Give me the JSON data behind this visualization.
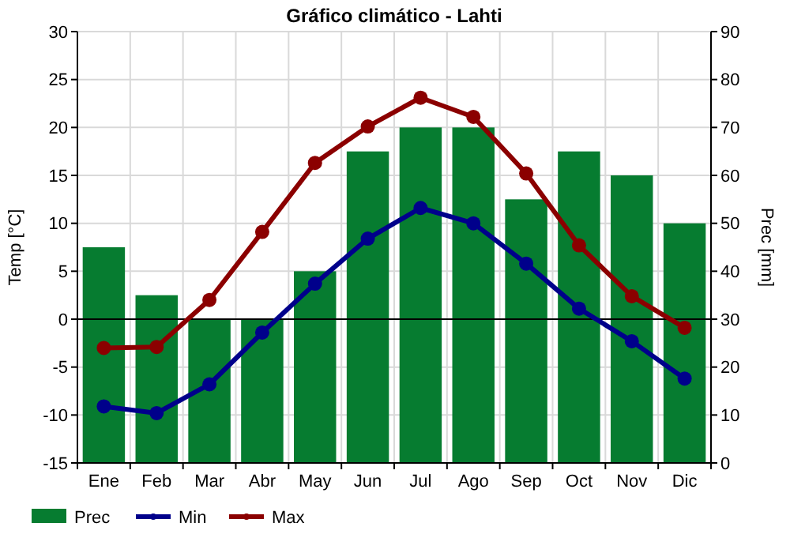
{
  "chart_data": {
    "type": "bar",
    "title": "Gráfico climático - Lahti",
    "categories": [
      "Ene",
      "Feb",
      "Mar",
      "Abr",
      "May",
      "Jun",
      "Jul",
      "Ago",
      "Sep",
      "Oct",
      "Nov",
      "Dic"
    ],
    "series": [
      {
        "name": "Prec",
        "axis": "y2",
        "color": "#067c30",
        "values": [
          45,
          35,
          30,
          30,
          40,
          65,
          70,
          70,
          55,
          65,
          60,
          50
        ]
      },
      {
        "name": "Min",
        "type": "line",
        "color": "#00008b",
        "values": [
          -9.1,
          -9.8,
          -6.8,
          -1.4,
          3.7,
          8.4,
          11.6,
          10,
          5.8,
          1.1,
          -2.3,
          -6.2
        ]
      },
      {
        "name": "Max",
        "type": "line",
        "color": "#8b0000",
        "values": [
          -3,
          -2.9,
          2,
          9.1,
          16.3,
          20.1,
          23.1,
          21.1,
          15.2,
          7.7,
          2.4,
          -0.9
        ]
      }
    ],
    "ylabel": "Temp [°C]",
    "y2label": "Prec [mm]",
    "ylim": [
      -15,
      30
    ],
    "yticks": [
      -15,
      -10,
      -5,
      0,
      5,
      10,
      15,
      20,
      25,
      30
    ],
    "y2lim": [
      0,
      90
    ],
    "y2ticks": [
      0,
      10,
      20,
      30,
      40,
      50,
      60,
      70,
      80,
      90
    ],
    "ref_lines": [
      {
        "axis": "y",
        "value": 0,
        "color": "#000000"
      }
    ],
    "grid": true,
    "legend": "bottom left",
    "marker": "circle"
  }
}
